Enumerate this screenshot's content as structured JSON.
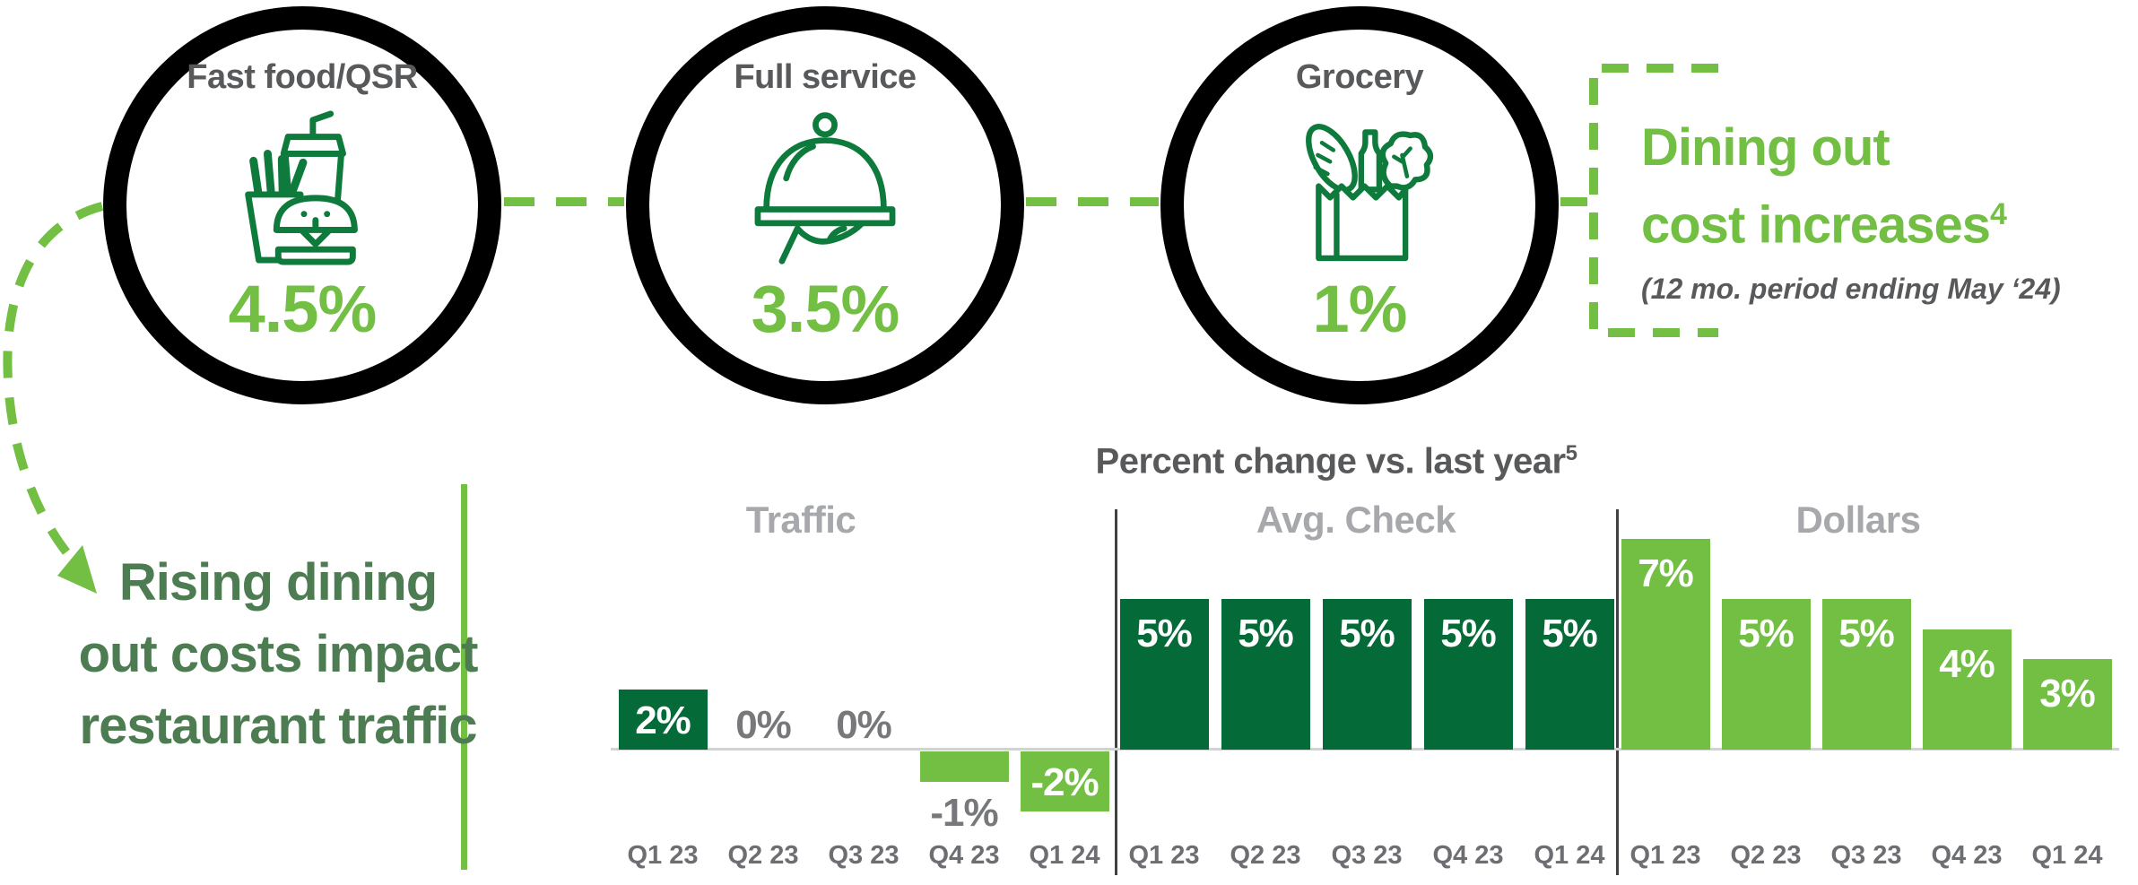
{
  "page": {
    "background": "#FFFFFF"
  },
  "colors": {
    "light_green": "#72BF44",
    "dark_green": "#046A38",
    "icon_green": "#0E7B3D",
    "headline_green": "#4E7C52",
    "title_gray": "#58595B",
    "axis_label_gray": "#6D6E71",
    "group_label_gray": "#A6A8AB",
    "zero_label_gray": "#77787B",
    "baseline_gray": "#D1D3D4",
    "divider_gray": "#414042",
    "circle_border_black": "#000000"
  },
  "top_categories": [
    {
      "label": "Fast food/QSR",
      "value": "4.5%",
      "icon": "fast-food-icon"
    },
    {
      "label": "Full service",
      "value": "3.5%",
      "icon": "cloche-icon"
    },
    {
      "label": "Grocery",
      "value": "1%",
      "icon": "grocery-bag-icon"
    }
  ],
  "callout": {
    "title_line1": "Dining out",
    "title_line2": "cost increases",
    "footnote": "4",
    "subtitle": "(12 mo. period ending May ‘24)"
  },
  "headline": {
    "line1": "Rising dining",
    "line2": "out costs impact",
    "line3": "restaurant traffic"
  },
  "chart_data": {
    "type": "bar",
    "title": "Percent change vs. last year",
    "title_footnote": "5",
    "value_format": "percent",
    "categories": [
      "Q1 23",
      "Q2 23",
      "Q3 23",
      "Q4 23",
      "Q1 24"
    ],
    "series": [
      {
        "name": "Traffic",
        "values": [
          2,
          0,
          0,
          -1,
          -2
        ],
        "labels": [
          "2%",
          "0%",
          "0%",
          "-1%",
          "-2%"
        ],
        "color": "#72BF44",
        "bar_colors": [
          "#046A38",
          null,
          null,
          "#72BF44",
          "#72BF44"
        ],
        "label_styles": [
          "inside-white",
          "zero-gray",
          "zero-gray",
          "below-gray",
          "inside-white"
        ]
      },
      {
        "name": "Avg. Check",
        "values": [
          5,
          5,
          5,
          5,
          5
        ],
        "labels": [
          "5%",
          "5%",
          "5%",
          "5%",
          "5%"
        ],
        "color": "#046A38",
        "bar_colors": [
          null,
          null,
          null,
          null,
          null
        ],
        "label_styles": [
          "inside-white",
          "inside-white",
          "inside-white",
          "inside-white",
          "inside-white"
        ]
      },
      {
        "name": "Dollars",
        "values": [
          7,
          5,
          5,
          4,
          3
        ],
        "labels": [
          "7%",
          "5%",
          "5%",
          "4%",
          "3%"
        ],
        "color": "#72BF44",
        "bar_colors": [
          null,
          null,
          null,
          null,
          null
        ],
        "label_styles": [
          "inside-white",
          "inside-white",
          "inside-white",
          "inside-white",
          "inside-white"
        ]
      }
    ],
    "baseline": 0,
    "ylim": [
      -2.5,
      7.5
    ],
    "grid": false,
    "legend": null
  }
}
